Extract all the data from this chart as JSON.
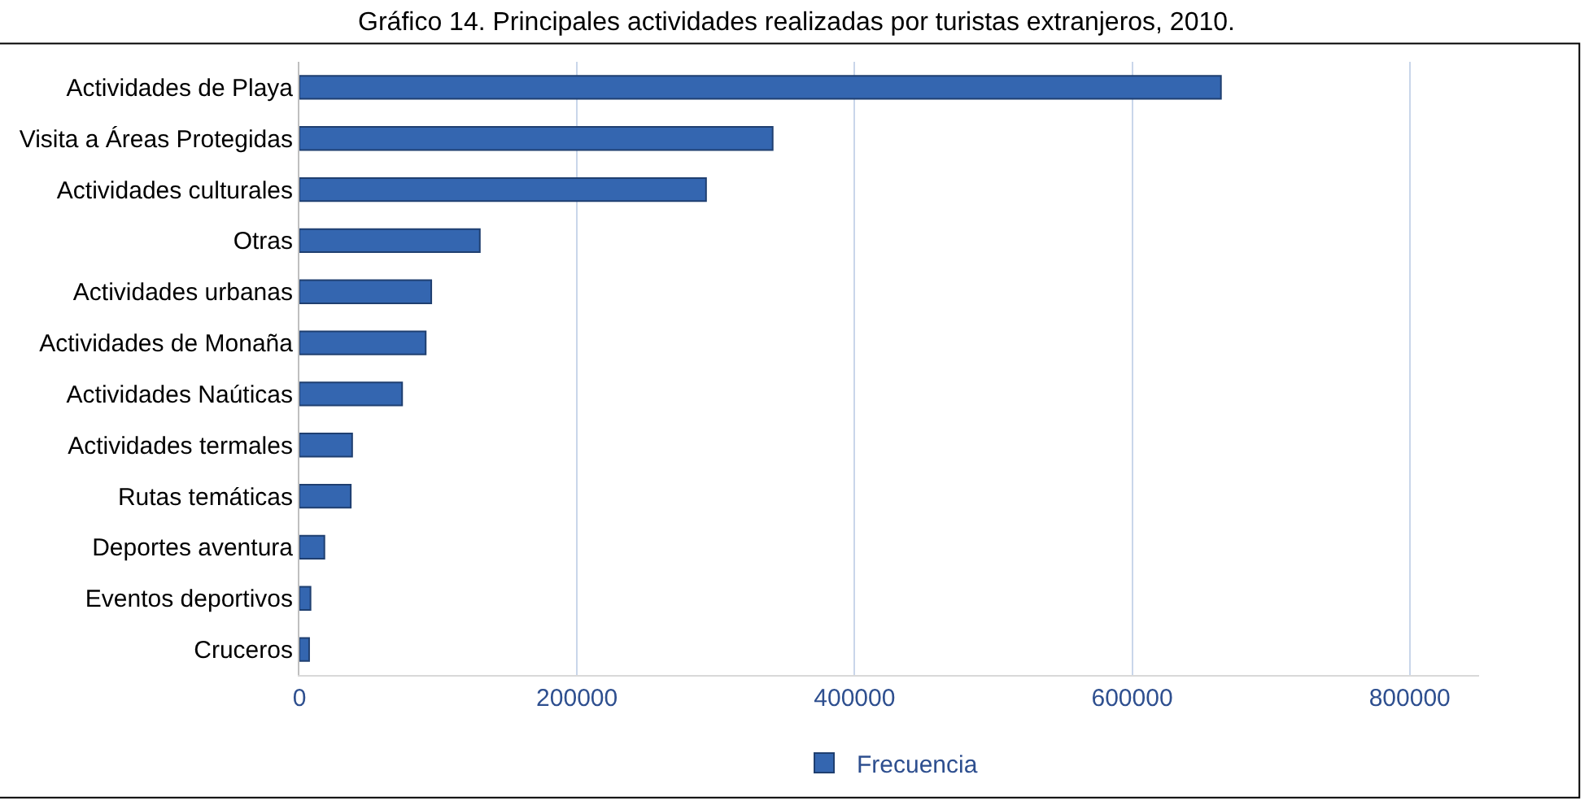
{
  "chart_data": {
    "type": "bar",
    "orientation": "horizontal",
    "title": "Gráfico 14. Principales actividades realizadas por turistas extranjeros, 2010.",
    "categories": [
      "Actividades de Playa",
      "Visita a Áreas Protegidas",
      "Actividades culturales",
      "Otras",
      "Actividades urbanas",
      "Actividades de Monaña",
      "Actividades Naúticas",
      "Actividades termales",
      "Rutas temáticas",
      "Deportes aventura",
      "Eventos deportivos",
      "Cruceros"
    ],
    "series": [
      {
        "name": "Frecuencia",
        "color": "#3466b0",
        "values": [
          664000,
          341000,
          293000,
          130000,
          95000,
          91000,
          74000,
          38000,
          37000,
          18000,
          8000,
          7000
        ]
      }
    ],
    "xlim": [
      0,
      850000
    ],
    "xticks": [
      0,
      200000,
      400000,
      600000,
      800000
    ],
    "grid": "x",
    "legend": "bottom"
  }
}
